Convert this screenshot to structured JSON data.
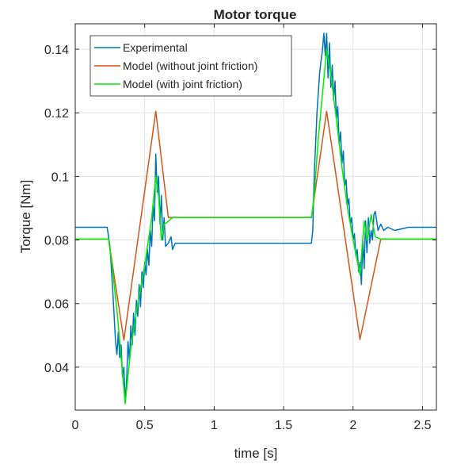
{
  "chart_data": {
    "type": "line",
    "title": "Motor torque",
    "xlabel": "time [s]",
    "ylabel": "Torque [Nm]",
    "xlim": [
      0,
      2.6
    ],
    "ylim": [
      0.0265,
      0.148
    ],
    "xticks": [
      0,
      0.5,
      1,
      1.5,
      2,
      2.5
    ],
    "xtick_labels": [
      "0",
      "0.5",
      "1",
      "1.5",
      "2",
      "2.5"
    ],
    "yticks": [
      0.04,
      0.06,
      0.08,
      0.1,
      0.12,
      0.14
    ],
    "ytick_labels": [
      "0.04",
      "0.06",
      "0.08",
      "0.1",
      "0.12",
      "0.14"
    ],
    "grid": true,
    "legend_position": "top-left",
    "series": [
      {
        "name": "Experimental",
        "color": "#0072BD",
        "x": [
          0,
          0.23,
          0.25,
          0.27,
          0.29,
          0.3,
          0.31,
          0.32,
          0.33,
          0.34,
          0.35,
          0.36,
          0.37,
          0.38,
          0.39,
          0.4,
          0.41,
          0.42,
          0.43,
          0.44,
          0.45,
          0.46,
          0.47,
          0.48,
          0.49,
          0.5,
          0.51,
          0.52,
          0.53,
          0.54,
          0.55,
          0.56,
          0.57,
          0.58,
          0.59,
          0.6,
          0.61,
          0.62,
          0.63,
          0.64,
          0.65,
          0.67,
          0.69,
          0.7,
          0.72,
          0.75,
          1.0,
          1.3,
          1.6,
          1.7,
          1.71,
          1.72,
          1.74,
          1.76,
          1.78,
          1.79,
          1.8,
          1.81,
          1.82,
          1.83,
          1.84,
          1.85,
          1.86,
          1.87,
          1.88,
          1.89,
          1.9,
          1.91,
          1.92,
          1.93,
          1.94,
          1.95,
          1.96,
          1.97,
          1.98,
          1.99,
          2.0,
          2.01,
          2.02,
          2.03,
          2.04,
          2.05,
          2.06,
          2.07,
          2.08,
          2.09,
          2.1,
          2.11,
          2.12,
          2.13,
          2.14,
          2.15,
          2.16,
          2.17,
          2.18,
          2.2,
          2.22,
          2.25,
          2.3,
          2.4,
          2.5,
          2.6
        ],
        "y": [
          0.084,
          0.084,
          0.078,
          0.064,
          0.048,
          0.044,
          0.051,
          0.043,
          0.047,
          0.037,
          0.04,
          0.029,
          0.036,
          0.048,
          0.042,
          0.053,
          0.047,
          0.057,
          0.05,
          0.061,
          0.056,
          0.066,
          0.059,
          0.07,
          0.065,
          0.073,
          0.069,
          0.077,
          0.072,
          0.083,
          0.078,
          0.091,
          0.086,
          0.107,
          0.095,
          0.1,
          0.085,
          0.094,
          0.08,
          0.087,
          0.078,
          0.079,
          0.081,
          0.077,
          0.079,
          0.079,
          0.079,
          0.079,
          0.079,
          0.079,
          0.083,
          0.1,
          0.12,
          0.133,
          0.14,
          0.145,
          0.138,
          0.145,
          0.131,
          0.142,
          0.128,
          0.135,
          0.124,
          0.13,
          0.118,
          0.122,
          0.11,
          0.114,
          0.104,
          0.108,
          0.097,
          0.099,
          0.091,
          0.093,
          0.085,
          0.087,
          0.08,
          0.082,
          0.075,
          0.077,
          0.07,
          0.073,
          0.066,
          0.08,
          0.071,
          0.086,
          0.076,
          0.087,
          0.079,
          0.083,
          0.08,
          0.088,
          0.089,
          0.086,
          0.083,
          0.085,
          0.083,
          0.084,
          0.083,
          0.084,
          0.084,
          0.084
        ]
      },
      {
        "name": "Model (without joint friction)",
        "color": "#D95319",
        "x": [
          0,
          0.24,
          0.35,
          0.58,
          0.67,
          0.7,
          1.0,
          1.5,
          1.7,
          1.81,
          2.05,
          2.2,
          2.6
        ],
        "y": [
          0.0803,
          0.0803,
          0.0485,
          0.1205,
          0.0871,
          0.0871,
          0.0871,
          0.0871,
          0.0871,
          0.1205,
          0.0487,
          0.0803,
          0.0803
        ]
      },
      {
        "name": "Model (with joint friction)",
        "color": "#00EE00",
        "x": [
          0,
          0.24,
          0.27,
          0.3,
          0.36,
          0.4,
          0.45,
          0.5,
          0.55,
          0.58,
          0.6,
          0.62,
          0.64,
          0.66,
          0.7,
          1.0,
          1.5,
          1.7,
          1.72,
          1.75,
          1.81,
          1.84,
          1.88,
          1.92,
          1.96,
          2.0,
          2.05,
          2.08,
          2.1,
          2.13,
          2.16,
          2.2,
          2.6
        ],
        "y": [
          0.0803,
          0.0803,
          0.07,
          0.058,
          0.0285,
          0.046,
          0.06,
          0.072,
          0.087,
          0.1,
          0.094,
          0.08,
          0.085,
          0.0855,
          0.0871,
          0.0871,
          0.0871,
          0.0871,
          0.094,
          0.112,
          0.14,
          0.132,
          0.118,
          0.103,
          0.09,
          0.08,
          0.069,
          0.086,
          0.08,
          0.088,
          0.081,
          0.0803,
          0.0803
        ]
      }
    ]
  }
}
